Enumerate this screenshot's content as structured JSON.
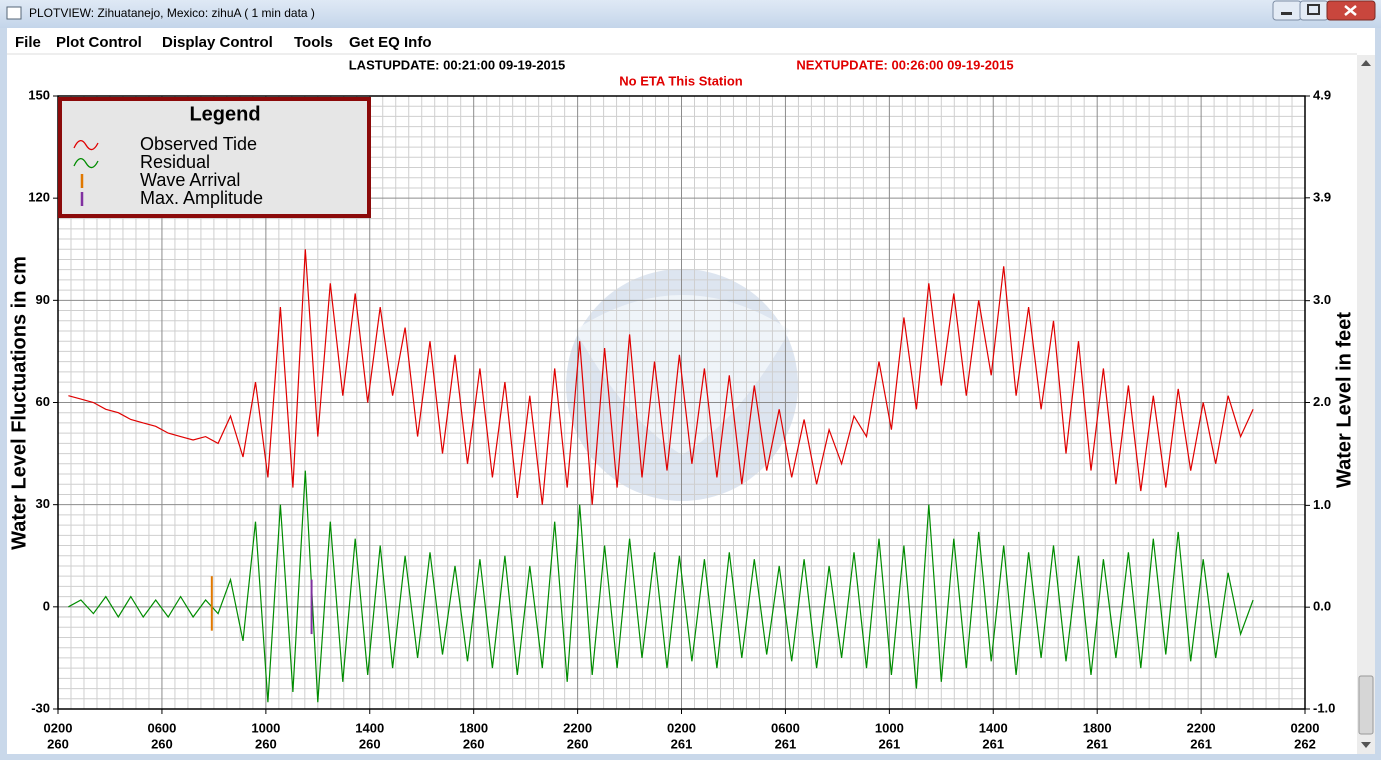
{
  "window": {
    "title": "PLOTVIEW:   Zihuatanejo, Mexico: zihuA (  1 min data )"
  },
  "menu": [
    "File",
    "Plot Control",
    "Display Control",
    "Tools",
    "Get EQ Info"
  ],
  "chart_data": {
    "type": "line",
    "last_update": "LASTUPDATE: 00:21:00 09-19-2015",
    "next_update": "NEXTUPDATE: 00:26:00 09-19-2015",
    "eta_note": "No ETA This Station",
    "y_label": "Water Level Fluctuations in cm",
    "y2_label": "Water Level in feet",
    "legend_title": "Legend",
    "legend": "upper left",
    "grid": true,
    "minor_divisions": {
      "x": 8,
      "y": 10
    },
    "xlim": [
      260.0833,
      262.0833
    ],
    "xticks": [
      {
        "value": 260.0833,
        "label": "0200",
        "day": "260"
      },
      {
        "value": 260.25,
        "label": "0600",
        "day": "260"
      },
      {
        "value": 260.4167,
        "label": "1000",
        "day": "260"
      },
      {
        "value": 260.5833,
        "label": "1400",
        "day": "260"
      },
      {
        "value": 260.75,
        "label": "1800",
        "day": "260"
      },
      {
        "value": 260.9167,
        "label": "2200",
        "day": "260"
      },
      {
        "value": 261.0833,
        "label": "0200",
        "day": "261"
      },
      {
        "value": 261.25,
        "label": "0600",
        "day": "261"
      },
      {
        "value": 261.4167,
        "label": "1000",
        "day": "261"
      },
      {
        "value": 261.5833,
        "label": "1400",
        "day": "261"
      },
      {
        "value": 261.75,
        "label": "1800",
        "day": "261"
      },
      {
        "value": 261.9167,
        "label": "2200",
        "day": "261"
      },
      {
        "value": 262.0833,
        "label": "0200",
        "day": "262"
      }
    ],
    "ylim": [
      -30,
      150
    ],
    "yticks": [
      -30,
      0,
      30,
      60,
      90,
      120,
      150
    ],
    "y2lim": [
      -0.98,
      4.92
    ],
    "y2ticks": [
      {
        "value": -0.98,
        "label": "-1.0"
      },
      {
        "value": 0,
        "label": "0.0"
      },
      {
        "value": 0.98,
        "label": "1.0"
      },
      {
        "value": 1.97,
        "label": "2.0"
      },
      {
        "value": 2.95,
        "label": "3.0"
      },
      {
        "value": 3.94,
        "label": "3.9"
      },
      {
        "value": 4.92,
        "label": "4.9"
      }
    ],
    "x": [
      260.1,
      260.12,
      260.14,
      260.16,
      260.18,
      260.2,
      260.22,
      260.24,
      260.26,
      260.28,
      260.3,
      260.32,
      260.34,
      260.36,
      260.38,
      260.4,
      260.42,
      260.44,
      260.46,
      260.48,
      260.5,
      260.52,
      260.54,
      260.56,
      260.58,
      260.6,
      260.62,
      260.64,
      260.66,
      260.68,
      260.7,
      260.72,
      260.74,
      260.76,
      260.78,
      260.8,
      260.82,
      260.84,
      260.86,
      260.88,
      260.9,
      260.92,
      260.94,
      260.96,
      260.98,
      261,
      261.02,
      261.04,
      261.06,
      261.08,
      261.1,
      261.12,
      261.14,
      261.16,
      261.18,
      261.2,
      261.22,
      261.24,
      261.26,
      261.28,
      261.3,
      261.32,
      261.34,
      261.36,
      261.38,
      261.4,
      261.42,
      261.44,
      261.46,
      261.48,
      261.5,
      261.52,
      261.54,
      261.56,
      261.58,
      261.6,
      261.62,
      261.64,
      261.66,
      261.68,
      261.7,
      261.72,
      261.74,
      261.76,
      261.78,
      261.8,
      261.82,
      261.84,
      261.86,
      261.88,
      261.9,
      261.92,
      261.94,
      261.96,
      261.98,
      262
    ],
    "series": [
      {
        "name": "Observed Tide",
        "color": "#e00000",
        "values": [
          62,
          61,
          60,
          58,
          57,
          55,
          54,
          53,
          51,
          50,
          49,
          50,
          48,
          56,
          44,
          66,
          38,
          88,
          35,
          105,
          50,
          95,
          62,
          92,
          60,
          88,
          62,
          82,
          50,
          78,
          45,
          74,
          42,
          70,
          38,
          66,
          32,
          62,
          30,
          70,
          35,
          78,
          30,
          76,
          35,
          80,
          38,
          72,
          40,
          74,
          42,
          70,
          38,
          68,
          36,
          65,
          40,
          58,
          38,
          55,
          36,
          52,
          42,
          56,
          50,
          72,
          52,
          85,
          58,
          95,
          65,
          92,
          62,
          90,
          68,
          100,
          62,
          88,
          58,
          84,
          45,
          78,
          40,
          70,
          36,
          65,
          34,
          62,
          35,
          64,
          40,
          60,
          42,
          62,
          50,
          58
        ]
      },
      {
        "name": "Residual",
        "color": "#008c00",
        "values": [
          0,
          2,
          -2,
          3,
          -3,
          3,
          -3,
          2,
          -3,
          3,
          -3,
          2,
          -2,
          8,
          -10,
          25,
          -28,
          30,
          -25,
          40,
          -28,
          25,
          -22,
          20,
          -20,
          18,
          -18,
          15,
          -15,
          16,
          -14,
          12,
          -16,
          14,
          -18,
          15,
          -20,
          12,
          -18,
          25,
          -22,
          30,
          -20,
          18,
          -18,
          20,
          -15,
          16,
          -18,
          15,
          -16,
          14,
          -18,
          16,
          -15,
          14,
          -14,
          12,
          -16,
          14,
          -18,
          12,
          -15,
          16,
          -18,
          20,
          -20,
          18,
          -24,
          30,
          -22,
          20,
          -18,
          22,
          -16,
          18,
          -20,
          16,
          -15,
          18,
          -16,
          15,
          -20,
          14,
          -15,
          16,
          -18,
          20,
          -14,
          22,
          -16,
          14,
          -15,
          10,
          -8,
          2
        ]
      }
    ],
    "markers": [
      {
        "name": "Wave Arrival",
        "color": "#e07800",
        "x": 260.33,
        "values": [
          -7,
          9
        ]
      },
      {
        "name": "Max. Amplitude",
        "color": "#8030a0",
        "x": 260.49,
        "values": [
          -8,
          8
        ]
      }
    ]
  }
}
